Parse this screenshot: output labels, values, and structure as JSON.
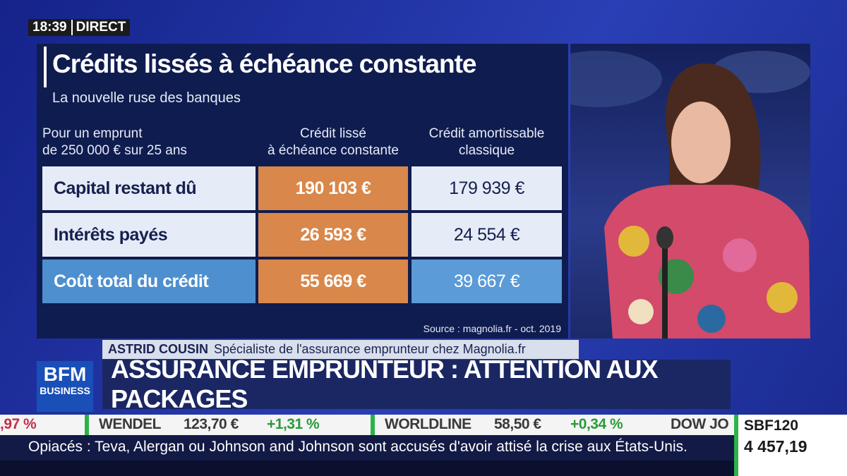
{
  "clock": {
    "time": "18:39",
    "live": "DIRECT"
  },
  "panel": {
    "title": "Crédits lissés à échéance constante",
    "subtitle": "La nouvelle ruse des banques",
    "table": {
      "header": [
        "Pour un emprunt\nde 250 000 € sur 25 ans",
        "Crédit lissé\nà échéance constante",
        "Crédit amortissable\nclassique"
      ],
      "rows": [
        [
          "Capital restant dû",
          "190 103 €",
          "179 939 €"
        ],
        [
          "Intérêts payés",
          "26 593 €",
          "24 554 €"
        ],
        [
          "Coût total du crédit",
          "55 669 €",
          "39 667 €"
        ]
      ]
    },
    "source": "Source : magnolia.fr - oct. 2019"
  },
  "lower_third": {
    "name": "ASTRID COUSIN",
    "role": "Spécialiste de l'assurance emprunteur chez Magnolia.fr",
    "headline": "ASSURANCE EMPRUNTEUR : ATTENTION AUX PACKAGES"
  },
  "logo": {
    "line1": "BFM",
    "line2": "BUSINESS"
  },
  "ticker": {
    "items": [
      ",97 %",
      "WENDEL",
      "123,70 €",
      "+1,31 %",
      "WORLDLINE",
      "58,50 €",
      "+0,34 %",
      "DOW JO"
    ],
    "index_name": "SBF120",
    "index_value": "4 457,19",
    "crawl": "Opiacés : Teva, Alergan ou Johnson and Johnson sont accusés d'avoir attisé la crise aux États-Unis."
  }
}
